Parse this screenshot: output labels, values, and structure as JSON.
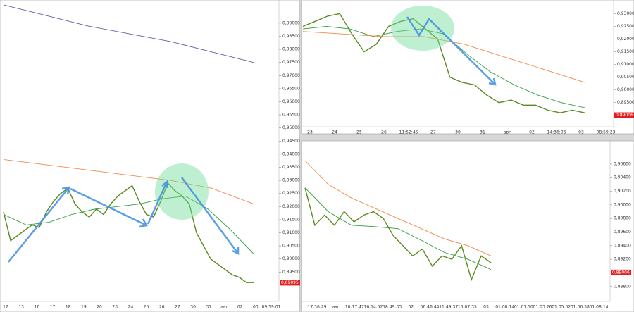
{
  "chart_data": [
    {
      "type": "line",
      "ylim": [
        0.8838,
        0.9975
      ],
      "yticks": [
        {
          "value": 0.99,
          "label": "0,99000"
        },
        {
          "value": 0.985,
          "label": "0,98500"
        },
        {
          "value": 0.98,
          "label": "0,98000"
        },
        {
          "value": 0.975,
          "label": "0,97500"
        },
        {
          "value": 0.97,
          "label": "0,97000"
        },
        {
          "value": 0.965,
          "label": "0,96500"
        },
        {
          "value": 0.96,
          "label": "0,96000"
        },
        {
          "value": 0.955,
          "label": "0,95500"
        },
        {
          "value": 0.95,
          "label": "0,95000"
        },
        {
          "value": 0.945,
          "label": "0,94500"
        },
        {
          "value": 0.94,
          "label": "0,94000"
        },
        {
          "value": 0.935,
          "label": "0,93500"
        },
        {
          "value": 0.93,
          "label": "0,93000"
        },
        {
          "value": 0.925,
          "label": "0,92500"
        },
        {
          "value": 0.92,
          "label": "0,92000"
        },
        {
          "value": 0.915,
          "label": "0,91500"
        },
        {
          "value": 0.91,
          "label": "0,91000"
        },
        {
          "value": 0.905,
          "label": "0,90500"
        },
        {
          "value": 0.9,
          "label": "0,90000"
        },
        {
          "value": 0.895,
          "label": "0,89500"
        }
      ],
      "x_labels": [
        "12",
        "13",
        "16",
        "17",
        "18",
        "19",
        "20",
        "23",
        "24",
        "25",
        "26",
        "27",
        "30",
        "31",
        "авг",
        "02",
        "03",
        "09:59:01"
      ],
      "last_price": {
        "value": 0.89095,
        "label": "0,89095"
      },
      "series": [
        {
          "name": "price",
          "color": "#5a8a1e",
          "values": [
            0.918,
            0.907,
            0.909,
            0.911,
            0.913,
            0.912,
            0.918,
            0.922,
            0.925,
            0.927,
            0.921,
            0.918,
            0.916,
            0.919,
            0.917,
            0.921,
            0.924,
            0.926,
            0.928,
            0.922,
            0.917,
            0.916,
            0.922,
            0.929,
            0.926,
            0.924,
            0.921,
            0.91,
            0.905,
            0.9,
            0.898,
            0.896,
            0.894,
            0.893,
            0.891,
            0.891
          ]
        },
        {
          "name": "ma-green",
          "color": "#2e9e3e",
          "values": [
            0.917,
            0.913,
            0.914,
            0.917,
            0.919,
            0.92,
            0.921,
            0.923,
            0.924,
            0.919,
            0.911,
            0.902
          ]
        },
        {
          "name": "ma-orange",
          "color": "#f08a4b",
          "values": [
            0.938,
            0.936,
            0.934,
            0.932,
            0.93,
            0.927,
            0.921
          ]
        },
        {
          "name": "ma-blue",
          "color": "#6060a8",
          "values": [
            0.997,
            0.993,
            0.989,
            0.986,
            0.983,
            0.979,
            0.975
          ]
        }
      ]
    },
    {
      "type": "line",
      "ylim": [
        0.8855,
        0.934
      ],
      "yticks": [
        {
          "value": 0.93,
          "label": "0,93000"
        },
        {
          "value": 0.925,
          "label": "0,92500"
        },
        {
          "value": 0.92,
          "label": "0,92000"
        },
        {
          "value": 0.915,
          "label": "0,91500"
        },
        {
          "value": 0.91,
          "label": "0,91000"
        },
        {
          "value": 0.905,
          "label": "0,90500"
        },
        {
          "value": 0.9,
          "label": "0,90000"
        },
        {
          "value": 0.895,
          "label": "0,89500"
        },
        {
          "value": 0.89,
          "label": "0,89000"
        }
      ],
      "x_labels": [
        "23",
        "24",
        "25",
        "26",
        "11:52:45",
        "27",
        "30",
        "31",
        "авг",
        "02",
        "14:36:06",
        "03",
        "08:59:23"
      ],
      "last_price": {
        "value": 0.89006,
        "label": "0,89006"
      },
      "series": [
        {
          "name": "price",
          "color": "#5a8a1e",
          "values": [
            0.925,
            0.927,
            0.929,
            0.93,
            0.922,
            0.915,
            0.918,
            0.925,
            0.927,
            0.928,
            0.924,
            0.92,
            0.905,
            0.903,
            0.902,
            0.898,
            0.895,
            0.896,
            0.894,
            0.894,
            0.892,
            0.891,
            0.892,
            0.891
          ]
        },
        {
          "name": "ma-green",
          "color": "#2e9e3e",
          "values": [
            0.924,
            0.925,
            0.924,
            0.921,
            0.923,
            0.924,
            0.922,
            0.914,
            0.907,
            0.902,
            0.898,
            0.895,
            0.893
          ]
        },
        {
          "name": "ma-orange",
          "color": "#f08a4b",
          "values": [
            0.923,
            0.922,
            0.921,
            0.921,
            0.918,
            0.913,
            0.908,
            0.903
          ]
        }
      ]
    },
    {
      "type": "line",
      "ylim": [
        0.8858,
        0.9091
      ],
      "yticks": [
        {
          "value": 0.906,
          "label": "0,90600"
        },
        {
          "value": 0.904,
          "label": "0,90400"
        },
        {
          "value": 0.902,
          "label": "0,90200"
        },
        {
          "value": 0.9,
          "label": "0,90000"
        },
        {
          "value": 0.898,
          "label": "0,89800"
        },
        {
          "value": 0.896,
          "label": "0,89600"
        },
        {
          "value": 0.894,
          "label": "0,89400"
        },
        {
          "value": 0.892,
          "label": "0,89200"
        },
        {
          "value": 0.89,
          "label": "0,89000"
        },
        {
          "value": 0.888,
          "label": "0,88800"
        }
      ],
      "x_labels": [
        "17:36:29",
        "авг",
        "10:17:47",
        "16:14:52",
        "18:49:33",
        "02",
        "06:46:44",
        "11:49:37",
        "16:07:35",
        "03",
        "01:00:14",
        "01:01:50",
        "01:03:26",
        "01:05:02",
        "01:06:38",
        "01:08:14"
      ],
      "last_price": {
        "value": 0.89006,
        "label": "0,89006"
      },
      "series": [
        {
          "name": "price",
          "color": "#5a8a1e",
          "values": [
            0.9025,
            0.897,
            0.8985,
            0.897,
            0.899,
            0.8975,
            0.8985,
            0.899,
            0.898,
            0.8955,
            0.894,
            0.8925,
            0.8935,
            0.891,
            0.8925,
            0.892,
            0.894,
            0.889,
            0.8925,
            0.8915
          ]
        },
        {
          "name": "ma-green",
          "color": "#2e9e3e",
          "values": [
            0.9025,
            0.899,
            0.897,
            0.8968,
            0.8965,
            0.8948,
            0.893,
            0.892,
            0.8905
          ]
        },
        {
          "name": "ma-orange",
          "color": "#f08a4b",
          "values": [
            0.9065,
            0.903,
            0.901,
            0.8995,
            0.898,
            0.8965,
            0.895,
            0.894,
            0.8925
          ]
        }
      ]
    }
  ]
}
